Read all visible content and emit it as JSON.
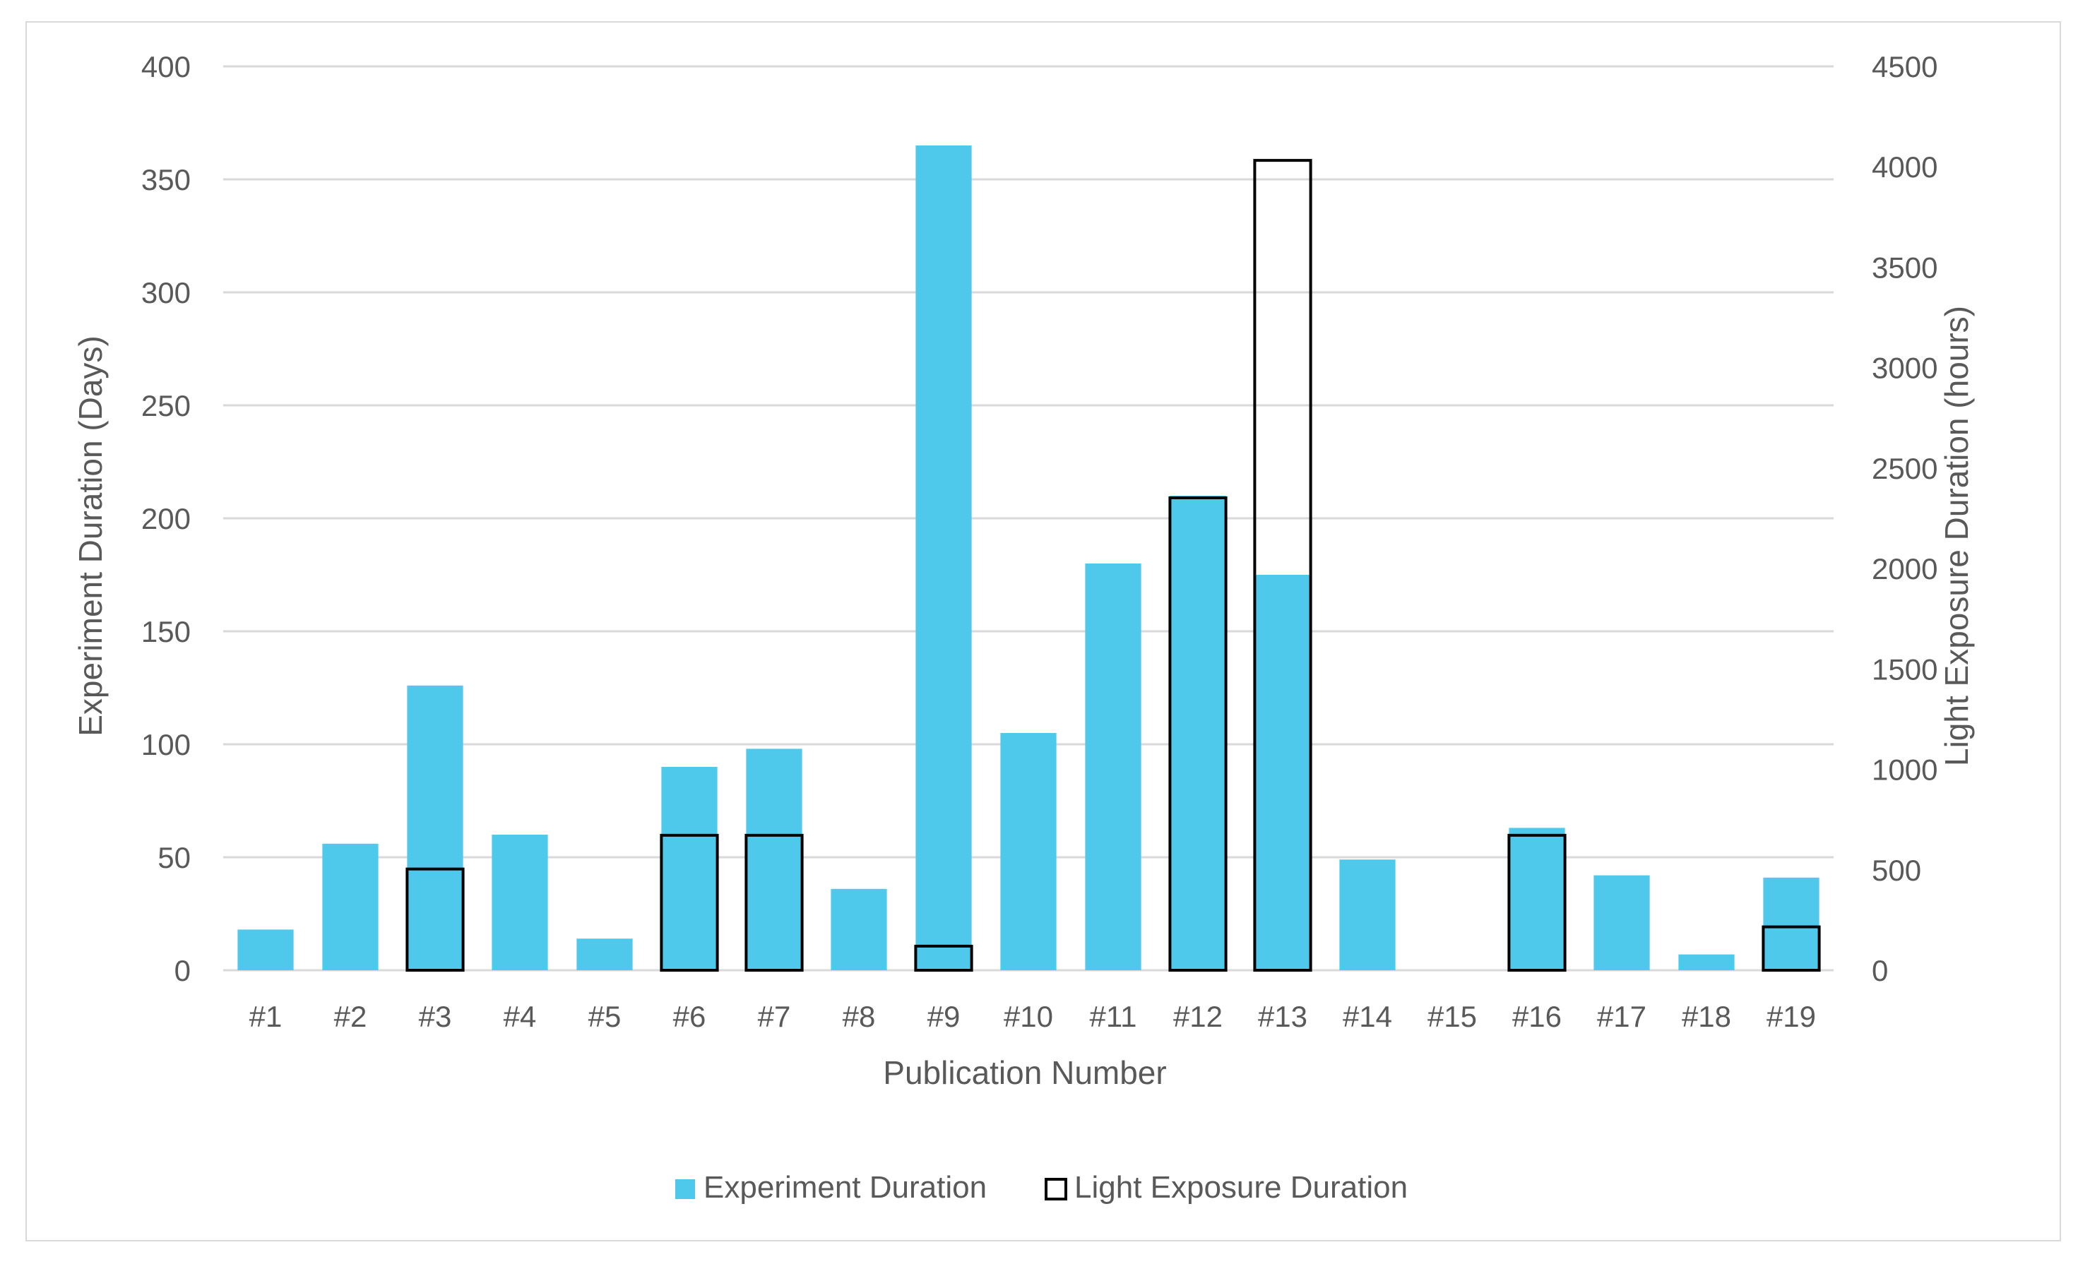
{
  "chart_data": {
    "type": "bar",
    "title": "",
    "categories": [
      "#1",
      "#2",
      "#3",
      "#4",
      "#5",
      "#6",
      "#7",
      "#8",
      "#9",
      "#10",
      "#11",
      "#12",
      "#13",
      "#14",
      "#15",
      "#16",
      "#17",
      "#18",
      "#19"
    ],
    "series": [
      {
        "name": "Experiment Duration",
        "axis": "left",
        "unit": "days",
        "values": [
          18,
          56,
          126,
          60,
          14,
          90,
          98,
          36,
          365,
          105,
          180,
          210,
          175,
          49,
          0,
          63,
          42,
          7,
          41
        ]
      },
      {
        "name": "Light Exposure Duration",
        "axis": "right",
        "unit": "hours",
        "values": [
          0,
          0,
          504,
          0,
          0,
          672,
          672,
          0,
          120,
          0,
          0,
          2352,
          4032,
          0,
          0,
          672,
          0,
          0,
          216
        ]
      }
    ],
    "xlabel": "Publication Number",
    "ylabel": "Experiment Duration (Days)",
    "y2label": "Light Exposure Duration (hours)",
    "ylim": [
      0,
      400
    ],
    "y2lim": [
      0,
      4500
    ],
    "yticks": [
      "0",
      "50",
      "100",
      "150",
      "200",
      "250",
      "300",
      "350",
      "400"
    ],
    "y2ticks": [
      "0",
      "500",
      "1000",
      "1500",
      "2000",
      "2500",
      "3000",
      "3500",
      "4000",
      "4500"
    ],
    "grid": true,
    "legend_position": "bottom",
    "colors": {
      "experiment": "#4ec9ec",
      "light_stroke": "#000000",
      "grid": "#d9d9d9",
      "text": "#595959"
    }
  }
}
